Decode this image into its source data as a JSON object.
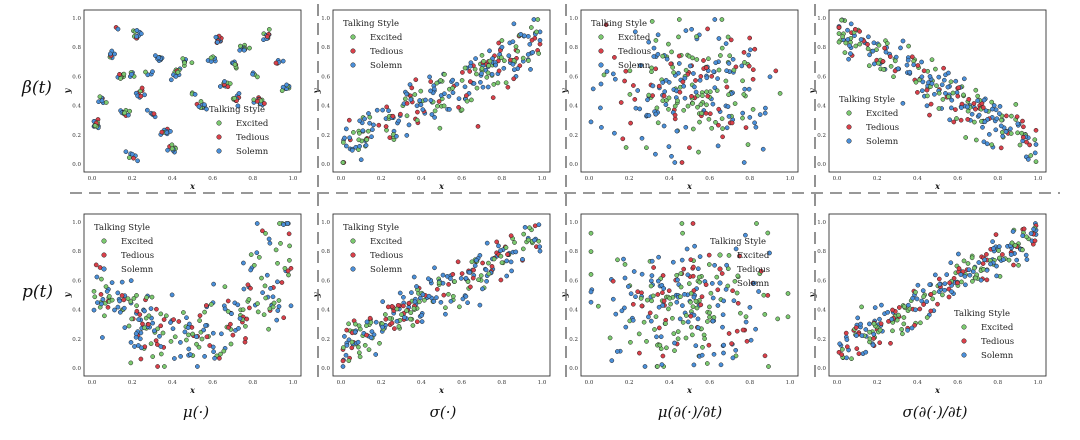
{
  "row_labels": [
    "β(t)",
    "p(t)"
  ],
  "col_labels": [
    "μ(·)",
    "σ(·)",
    "μ(∂(·)/∂t)",
    "σ(∂(·)/∂t)"
  ],
  "legend_title": "Talking Style",
  "style_colors": {
    "Excited": "#7bc96f",
    "Tedious": "#d9404a",
    "Solemn": "#4a8fd9"
  },
  "chart_data": [
    {
      "type": "scatter",
      "row": "β(t)",
      "col": "μ(·)",
      "xlabel": "x",
      "ylabel": "y",
      "xlim": [
        0,
        1
      ],
      "ylim": [
        0,
        1
      ],
      "xticks": [
        "0.0",
        "0.2",
        "0.4",
        "0.6",
        "0.8",
        "1.0"
      ],
      "yticks": [
        "0.0",
        "0.2",
        "0.4",
        "0.6",
        "0.8",
        "1.0"
      ],
      "legend": {
        "title": "Talking Style",
        "entries": [
          "Excited",
          "Tedious",
          "Solemn"
        ],
        "position": "lower-right"
      },
      "pattern": "clusters",
      "clusters": [
        [
          0.02,
          0.27
        ],
        [
          0.05,
          0.44
        ],
        [
          0.1,
          0.75
        ],
        [
          0.14,
          0.6
        ],
        [
          0.17,
          0.35
        ],
        [
          0.2,
          0.62
        ],
        [
          0.24,
          0.48
        ],
        [
          0.28,
          0.62
        ],
        [
          0.3,
          0.35
        ],
        [
          0.33,
          0.72
        ],
        [
          0.2,
          0.06
        ],
        [
          0.22,
          0.88
        ],
        [
          0.36,
          0.22
        ],
        [
          0.4,
          0.1
        ],
        [
          0.42,
          0.62
        ],
        [
          0.47,
          0.7
        ],
        [
          0.5,
          0.48
        ],
        [
          0.55,
          0.4
        ],
        [
          0.6,
          0.72
        ],
        [
          0.63,
          0.85
        ],
        [
          0.67,
          0.55
        ],
        [
          0.71,
          0.68
        ],
        [
          0.72,
          0.45
        ],
        [
          0.76,
          0.78
        ],
        [
          0.8,
          0.6
        ],
        [
          0.83,
          0.43
        ],
        [
          0.87,
          0.88
        ],
        [
          0.93,
          0.7
        ],
        [
          0.97,
          0.53
        ],
        [
          0.12,
          0.92
        ]
      ]
    },
    {
      "type": "scatter",
      "row": "β(t)",
      "col": "σ(·)",
      "xlabel": "x",
      "ylabel": "y",
      "xlim": [
        0,
        1
      ],
      "ylim": [
        0,
        1
      ],
      "xticks": [
        "0.0",
        "0.2",
        "0.4",
        "0.6",
        "0.8",
        "1.0"
      ],
      "yticks": [
        "0.0",
        "0.2",
        "0.4",
        "0.6",
        "0.8",
        "1.0"
      ],
      "legend": {
        "title": "Talking Style",
        "entries": [
          "Excited",
          "Tedious",
          "Solemn"
        ],
        "position": "upper-left"
      },
      "pattern": "diagonal",
      "trend": [
        0.1,
        0.85
      ],
      "spread": 0.16
    },
    {
      "type": "scatter",
      "row": "β(t)",
      "col": "μ(∂(·)/∂t)",
      "xlabel": "x",
      "ylabel": "y",
      "xlim": [
        0,
        1
      ],
      "ylim": [
        0,
        1
      ],
      "xticks": [
        "0.0",
        "0.2",
        "0.4",
        "0.6",
        "0.8",
        "1.0"
      ],
      "yticks": [
        "0.0",
        "0.2",
        "0.4",
        "0.6",
        "0.8",
        "1.0"
      ],
      "legend": {
        "title": "Talking Style",
        "entries": [
          "Excited",
          "Tedious",
          "Solemn"
        ],
        "position": "upper-left"
      },
      "pattern": "blob",
      "center": [
        0.5,
        0.52
      ],
      "spread": 0.28
    },
    {
      "type": "scatter",
      "row": "β(t)",
      "col": "σ(∂(·)/∂t)",
      "xlabel": "x",
      "ylabel": "y",
      "xlim": [
        0,
        1
      ],
      "ylim": [
        0,
        1
      ],
      "xticks": [
        "0.0",
        "0.2",
        "0.4",
        "0.6",
        "0.8",
        "1.0"
      ],
      "yticks": [
        "0.0",
        "0.2",
        "0.4",
        "0.6",
        "0.8",
        "1.0"
      ],
      "legend": {
        "title": "Talking Style",
        "entries": [
          "Excited",
          "Tedious",
          "Solemn"
        ],
        "position": "lower-left"
      },
      "pattern": "diagonal",
      "trend": [
        0.92,
        0.12
      ],
      "spread": 0.14
    },
    {
      "type": "scatter",
      "row": "p(t)",
      "col": "μ(·)",
      "xlabel": "x",
      "ylabel": "y",
      "xlim": [
        0,
        1
      ],
      "ylim": [
        0,
        1
      ],
      "xticks": [
        "0.0",
        "0.2",
        "0.4",
        "0.6",
        "0.8",
        "1.0"
      ],
      "yticks": [
        "0.0",
        "0.2",
        "0.4",
        "0.6",
        "0.8",
        "1.0"
      ],
      "legend": {
        "title": "Talking Style",
        "entries": [
          "Excited",
          "Tedious",
          "Solemn"
        ],
        "position": "upper-left"
      },
      "pattern": "valley",
      "spread": 0.12
    },
    {
      "type": "scatter",
      "row": "p(t)",
      "col": "σ(·)",
      "xlabel": "x",
      "ylabel": "y",
      "xlim": [
        0,
        1
      ],
      "ylim": [
        0,
        1
      ],
      "xticks": [
        "0.0",
        "0.2",
        "0.4",
        "0.6",
        "0.8",
        "1.0"
      ],
      "yticks": [
        "0.0",
        "0.2",
        "0.4",
        "0.6",
        "0.8",
        "1.0"
      ],
      "legend": {
        "title": "Talking Style",
        "entries": [
          "Excited",
          "Tedious",
          "Solemn"
        ],
        "position": "upper-left"
      },
      "pattern": "diagonal",
      "trend": [
        0.15,
        0.9
      ],
      "spread": 0.13
    },
    {
      "type": "scatter",
      "row": "p(t)",
      "col": "μ(∂(·)/∂t)",
      "xlabel": "x",
      "ylabel": "y",
      "xlim": [
        0,
        1
      ],
      "ylim": [
        0,
        1
      ],
      "xticks": [
        "0.0",
        "0.2",
        "0.4",
        "0.6",
        "0.8",
        "1.0"
      ],
      "yticks": [
        "0.0",
        "0.2",
        "0.4",
        "0.6",
        "0.8",
        "1.0"
      ],
      "legend": {
        "title": "Talking Style",
        "entries": [
          "Excited",
          "Tedious",
          "Solemn"
        ],
        "position": "upper-right"
      },
      "pattern": "blob",
      "center": [
        0.5,
        0.45
      ],
      "spread": 0.3
    },
    {
      "type": "scatter",
      "row": "p(t)",
      "col": "σ(∂(·)/∂t)",
      "xlabel": "x",
      "ylabel": "y",
      "xlim": [
        0,
        1
      ],
      "ylim": [
        0,
        1
      ],
      "xticks": [
        "0.0",
        "0.2",
        "0.4",
        "0.6",
        "0.8",
        "1.0"
      ],
      "yticks": [
        "0.0",
        "0.2",
        "0.4",
        "0.6",
        "0.8",
        "1.0"
      ],
      "legend": {
        "title": "Talking Style",
        "entries": [
          "Excited",
          "Tedious",
          "Solemn"
        ],
        "position": "lower-right"
      },
      "pattern": "diagonal",
      "trend": [
        0.1,
        0.92
      ],
      "spread": 0.12
    }
  ]
}
